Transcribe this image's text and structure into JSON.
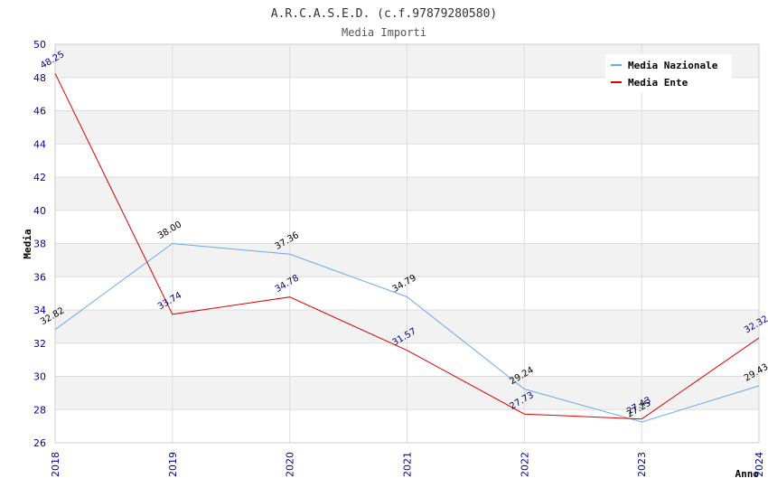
{
  "chart_data": {
    "type": "line",
    "title": "A.R.C.A.S.E.D. (c.f.97879280580)",
    "subtitle": "Media Importi",
    "xlabel": "Anno",
    "ylabel": "Media",
    "x": [
      "2018",
      "2019",
      "2020",
      "2021",
      "2022",
      "2023",
      "2024"
    ],
    "ylim": [
      26,
      50
    ],
    "y_ticks": [
      26,
      28,
      30,
      32,
      34,
      36,
      38,
      40,
      42,
      44,
      46,
      48,
      50
    ],
    "grid": true,
    "legend_position": "top-right",
    "series": [
      {
        "name": "Media Nazionale",
        "color": "#66aaee",
        "label_color": "#000000",
        "values": [
          32.82,
          38.0,
          37.36,
          34.79,
          29.24,
          27.25,
          29.43
        ],
        "labels": [
          "32.82",
          "38.00",
          "37.36",
          "34.79",
          "29.24",
          "27.25",
          "29.43"
        ]
      },
      {
        "name": "Media Ente",
        "color": "#dd0000",
        "label_color": "#000080",
        "values": [
          48.25,
          33.74,
          34.78,
          31.57,
          27.73,
          27.43,
          32.32
        ],
        "labels": [
          "48.25",
          "33.74",
          "34.78",
          "31.57",
          "27.73",
          "27.43",
          "32.32"
        ]
      }
    ]
  }
}
